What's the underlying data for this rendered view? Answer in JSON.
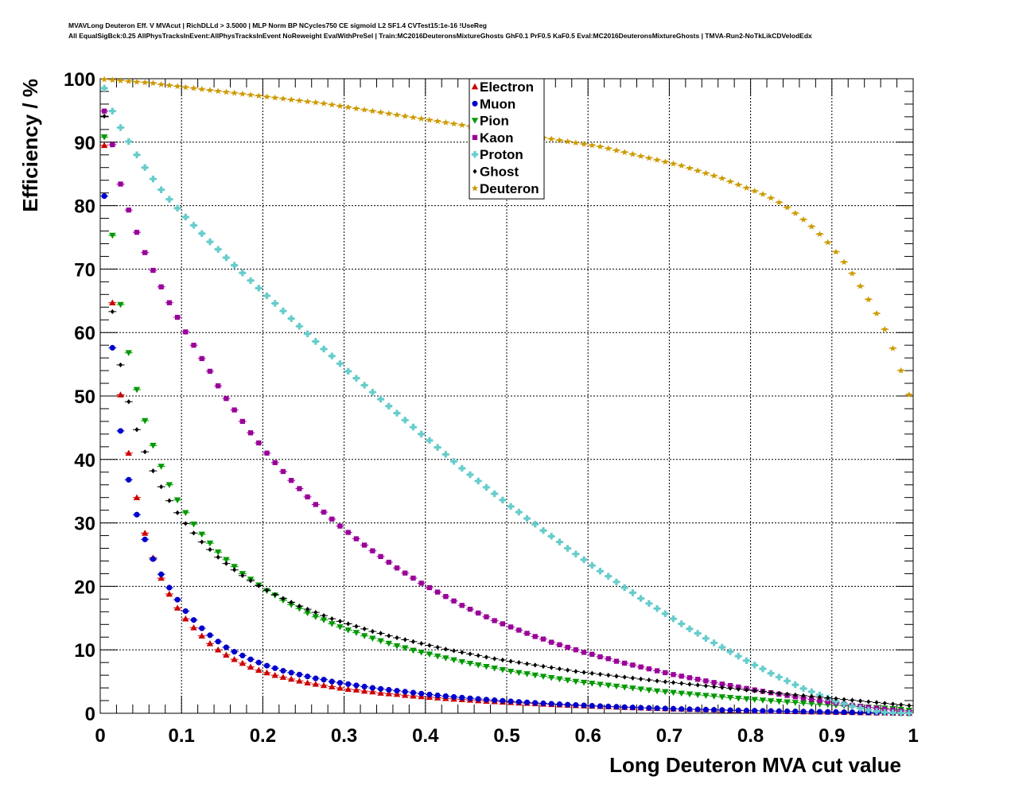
{
  "header": {
    "line1": "MVAVLong Deuteron Eff. V MVAcut | RichDLLd > 3.5000 | MLP Norm BP NCycles750 CE sigmoid L2 SF1.4 CVTest15:1e-16 !UseReg",
    "line2": "All EqualSigBck:0.25 AllPhysTracksInEvent:AllPhysTracksInEvent NoReweight EvalWithPreSel | Train:MC2016DeuteronsMixtureGhosts GhF0.1 PrF0.5 KaF0.5 Eval:MC2016DeuteronsMixtureGhosts | TMVA-Run2-NoTkLikCDVelodEdx"
  },
  "chart_data": {
    "type": "scatter",
    "xlabel": "Long Deuteron MVA cut value",
    "ylabel": "Efficiency / %",
    "xlim": [
      0,
      1
    ],
    "ylim": [
      0,
      100
    ],
    "grid": true,
    "legend_position": "top-center",
    "x_ticks": [
      "0",
      "0.1",
      "0.2",
      "0.3",
      "0.4",
      "0.5",
      "0.6",
      "0.7",
      "0.8",
      "0.9",
      "1"
    ],
    "y_ticks": [
      "0",
      "10",
      "20",
      "30",
      "40",
      "50",
      "60",
      "70",
      "80",
      "90",
      "100"
    ],
    "x": [
      0.005,
      0.015,
      0.025,
      0.035,
      0.045,
      0.055,
      0.065,
      0.075,
      0.085,
      0.095,
      0.105,
      0.115,
      0.125,
      0.135,
      0.145,
      0.155,
      0.165,
      0.175,
      0.185,
      0.195,
      0.205,
      0.215,
      0.225,
      0.235,
      0.245,
      0.255,
      0.265,
      0.275,
      0.285,
      0.295,
      0.305,
      0.315,
      0.325,
      0.335,
      0.345,
      0.355,
      0.365,
      0.375,
      0.385,
      0.395,
      0.405,
      0.415,
      0.425,
      0.435,
      0.445,
      0.455,
      0.465,
      0.475,
      0.485,
      0.495,
      0.505,
      0.515,
      0.525,
      0.535,
      0.545,
      0.555,
      0.565,
      0.575,
      0.585,
      0.595,
      0.605,
      0.615,
      0.625,
      0.635,
      0.645,
      0.655,
      0.665,
      0.675,
      0.685,
      0.695,
      0.705,
      0.715,
      0.725,
      0.735,
      0.745,
      0.755,
      0.765,
      0.775,
      0.785,
      0.795,
      0.805,
      0.815,
      0.825,
      0.835,
      0.845,
      0.855,
      0.865,
      0.875,
      0.885,
      0.895,
      0.905,
      0.915,
      0.925,
      0.935,
      0.945,
      0.955,
      0.965,
      0.975,
      0.985,
      0.995
    ],
    "series": [
      {
        "name": "Electron",
        "color": "#cc0000",
        "marker": "triangle-up",
        "values": [
          89.5,
          64.7,
          50.2,
          41.0,
          34.0,
          28.4,
          24.5,
          21.3,
          18.8,
          16.6,
          14.9,
          13.5,
          12.2,
          11.0,
          10.0,
          9.2,
          8.5,
          7.9,
          7.3,
          6.8,
          6.4,
          6.0,
          5.7,
          5.4,
          5.1,
          4.8,
          4.6,
          4.4,
          4.2,
          4.0,
          3.8,
          3.7,
          3.5,
          3.4,
          3.2,
          3.1,
          3.0,
          2.85,
          2.74,
          2.64,
          2.54,
          2.44,
          2.35,
          2.26,
          2.17,
          2.09,
          2.01,
          1.93,
          1.86,
          1.79,
          1.72,
          1.65,
          1.59,
          1.53,
          1.47,
          1.41,
          1.35,
          1.3,
          1.24,
          1.19,
          1.14,
          1.09,
          1.04,
          1.0,
          0.95,
          0.91,
          0.87,
          0.83,
          0.79,
          0.75,
          0.71,
          0.68,
          0.64,
          0.61,
          0.58,
          0.55,
          0.52,
          0.49,
          0.46,
          0.43,
          0.41,
          0.38,
          0.36,
          0.34,
          0.31,
          0.29,
          0.27,
          0.25,
          0.23,
          0.21,
          0.19,
          0.17,
          0.15,
          0.13,
          0.11,
          0.09,
          0.07,
          0.05,
          0.03,
          0.01
        ]
      },
      {
        "name": "Muon",
        "color": "#0000cc",
        "marker": "circle",
        "values": [
          81.5,
          57.6,
          44.5,
          36.8,
          31.3,
          27.4,
          24.3,
          21.9,
          19.8,
          17.9,
          16.1,
          14.7,
          13.4,
          12.3,
          11.3,
          10.4,
          9.7,
          9.1,
          8.5,
          8.0,
          7.5,
          7.1,
          6.7,
          6.4,
          6.1,
          5.8,
          5.5,
          5.3,
          5.0,
          4.8,
          4.6,
          4.4,
          4.2,
          4.0,
          3.85,
          3.7,
          3.55,
          3.4,
          3.25,
          3.1,
          2.95,
          2.82,
          2.7,
          2.58,
          2.47,
          2.36,
          2.26,
          2.16,
          2.06,
          1.97,
          1.88,
          1.8,
          1.72,
          1.64,
          1.57,
          1.5,
          1.43,
          1.36,
          1.3,
          1.24,
          1.18,
          1.12,
          1.07,
          1.02,
          0.97,
          0.92,
          0.87,
          0.83,
          0.79,
          0.75,
          0.71,
          0.67,
          0.63,
          0.6,
          0.57,
          0.54,
          0.51,
          0.48,
          0.45,
          0.42,
          0.4,
          0.37,
          0.35,
          0.33,
          0.31,
          0.29,
          0.27,
          0.25,
          0.23,
          0.21,
          0.19,
          0.17,
          0.15,
          0.13,
          0.11,
          0.09,
          0.07,
          0.05,
          0.03,
          0.01
        ]
      },
      {
        "name": "Pion",
        "color": "#009900",
        "marker": "triangle-down",
        "values": [
          90.8,
          75.3,
          64.4,
          56.8,
          51.0,
          46.1,
          42.2,
          38.9,
          36.0,
          33.6,
          31.6,
          29.8,
          28.2,
          26.8,
          25.4,
          24.2,
          23.1,
          22.0,
          21.1,
          20.2,
          19.3,
          18.6,
          17.8,
          17.1,
          16.5,
          15.8,
          15.2,
          14.7,
          14.1,
          13.6,
          13.1,
          12.7,
          12.2,
          11.8,
          11.4,
          11.0,
          10.6,
          10.3,
          9.9,
          9.6,
          9.3,
          9.0,
          8.7,
          8.4,
          8.1,
          7.85,
          7.6,
          7.35,
          7.1,
          6.85,
          6.6,
          6.4,
          6.2,
          6.0,
          5.8,
          5.6,
          5.4,
          5.2,
          5.0,
          4.85,
          4.7,
          4.55,
          4.4,
          4.25,
          4.1,
          3.95,
          3.8,
          3.65,
          3.5,
          3.38,
          3.26,
          3.14,
          3.02,
          2.9,
          2.79,
          2.68,
          2.57,
          2.46,
          2.35,
          2.25,
          2.15,
          2.05,
          1.95,
          1.86,
          1.77,
          1.68,
          1.59,
          1.5,
          1.42,
          1.34,
          1.26,
          1.18,
          1.1,
          1.02,
          0.94,
          0.86,
          0.78,
          0.7,
          0.6,
          0.45
        ]
      },
      {
        "name": "Kaon",
        "color": "#990099",
        "marker": "square",
        "values": [
          94.9,
          89.6,
          83.4,
          79.3,
          75.8,
          72.6,
          69.8,
          67.2,
          64.7,
          62.4,
          60.1,
          58.0,
          55.9,
          53.9,
          51.6,
          49.6,
          47.8,
          46.0,
          44.2,
          42.6,
          41.0,
          39.5,
          38.1,
          36.7,
          35.4,
          34.1,
          32.9,
          31.7,
          30.6,
          29.5,
          28.5,
          27.5,
          26.5,
          25.6,
          24.7,
          23.8,
          22.9,
          22.1,
          21.3,
          20.5,
          19.8,
          19.1,
          18.4,
          17.7,
          17.0,
          16.4,
          15.8,
          15.2,
          14.6,
          14.1,
          13.6,
          13.1,
          12.6,
          12.1,
          11.7,
          11.2,
          10.8,
          10.4,
          10.0,
          9.6,
          9.3,
          8.9,
          8.6,
          8.2,
          7.9,
          7.6,
          7.3,
          7.0,
          6.7,
          6.4,
          6.1,
          5.85,
          5.6,
          5.35,
          5.1,
          4.85,
          4.6,
          4.37,
          4.14,
          3.91,
          3.68,
          3.46,
          3.24,
          3.02,
          2.81,
          2.6,
          2.4,
          2.2,
          2.0,
          1.81,
          1.62,
          1.44,
          1.27,
          1.1,
          0.94,
          0.79,
          0.64,
          0.5,
          0.36,
          0.22
        ]
      },
      {
        "name": "Proton",
        "color": "#66cccc",
        "marker": "cross",
        "values": [
          98.5,
          94.9,
          92.3,
          90.1,
          88.0,
          86.0,
          84.2,
          82.5,
          81.0,
          79.6,
          78.2,
          76.9,
          75.6,
          74.3,
          73.1,
          71.8,
          70.6,
          69.4,
          68.2,
          67.0,
          65.8,
          64.6,
          63.4,
          62.2,
          61.0,
          59.8,
          58.6,
          57.4,
          56.3,
          55.1,
          53.9,
          52.8,
          51.7,
          50.6,
          49.5,
          48.4,
          47.3,
          46.2,
          45.1,
          44.0,
          43.0,
          41.9,
          40.8,
          39.7,
          38.6,
          37.6,
          36.6,
          35.6,
          34.6,
          33.6,
          32.6,
          31.7,
          30.7,
          29.8,
          28.8,
          27.9,
          27.0,
          26.0,
          25.1,
          24.2,
          23.3,
          22.4,
          21.6,
          20.7,
          19.8,
          19.0,
          18.1,
          17.3,
          16.5,
          15.7,
          14.9,
          14.1,
          13.3,
          12.6,
          11.8,
          11.1,
          10.4,
          9.7,
          9.0,
          8.3,
          7.6,
          7.0,
          6.3,
          5.7,
          5.1,
          4.5,
          3.9,
          3.4,
          2.9,
          2.4,
          1.9,
          1.5,
          1.1,
          0.8,
          0.5,
          0.3,
          0.15,
          0.07,
          0.03,
          0.01
        ]
      },
      {
        "name": "Ghost",
        "color": "#000000",
        "marker": "diamond",
        "values": [
          94.1,
          63.3,
          54.9,
          49.1,
          44.7,
          41.2,
          38.2,
          35.7,
          33.5,
          31.6,
          29.9,
          28.4,
          27.0,
          25.8,
          24.6,
          23.6,
          22.6,
          21.7,
          20.9,
          20.1,
          19.4,
          18.7,
          18.1,
          17.5,
          16.9,
          16.4,
          15.9,
          15.4,
          14.9,
          14.5,
          14.1,
          13.7,
          13.3,
          12.9,
          12.6,
          12.2,
          11.9,
          11.6,
          11.3,
          11.0,
          10.7,
          10.4,
          10.1,
          9.85,
          9.6,
          9.35,
          9.1,
          8.85,
          8.6,
          8.4,
          8.2,
          8.0,
          7.8,
          7.6,
          7.4,
          7.2,
          7.0,
          6.8,
          6.6,
          6.45,
          6.3,
          6.15,
          6.0,
          5.85,
          5.7,
          5.55,
          5.4,
          5.25,
          5.1,
          4.97,
          4.84,
          4.71,
          4.58,
          4.45,
          4.32,
          4.19,
          4.06,
          3.93,
          3.8,
          3.67,
          3.54,
          3.41,
          3.28,
          3.15,
          3.02,
          2.9,
          2.78,
          2.66,
          2.54,
          2.42,
          2.3,
          2.18,
          2.06,
          1.94,
          1.82,
          1.7,
          1.58,
          1.46,
          1.34,
          1.22
        ]
      },
      {
        "name": "Deuteron",
        "color": "#cc9900",
        "marker": "star",
        "values": [
          99.9,
          99.8,
          99.7,
          99.6,
          99.5,
          99.4,
          99.3,
          99.1,
          98.95,
          98.8,
          98.65,
          98.5,
          98.35,
          98.2,
          98.05,
          97.9,
          97.75,
          97.6,
          97.45,
          97.3,
          97.15,
          97.0,
          96.85,
          96.7,
          96.55,
          96.4,
          96.25,
          96.1,
          95.9,
          95.7,
          95.5,
          95.3,
          95.1,
          94.9,
          94.7,
          94.5,
          94.3,
          94.1,
          93.9,
          93.7,
          93.5,
          93.3,
          93.1,
          92.9,
          92.7,
          92.5,
          92.3,
          92.1,
          91.9,
          91.7,
          91.5,
          91.3,
          91.1,
          90.9,
          90.7,
          90.5,
          90.3,
          90.1,
          89.9,
          89.7,
          89.5,
          89.3,
          89.0,
          88.7,
          88.4,
          88.1,
          87.8,
          87.5,
          87.2,
          86.9,
          86.6,
          86.3,
          85.9,
          85.5,
          85.1,
          84.7,
          84.3,
          83.8,
          83.3,
          82.8,
          82.3,
          81.8,
          81.2,
          80.5,
          79.7,
          78.8,
          77.8,
          76.7,
          75.5,
          74.2,
          72.7,
          71.1,
          69.3,
          67.3,
          65.2,
          63.0,
          60.5,
          57.5,
          54.0,
          50.2
        ]
      }
    ]
  }
}
